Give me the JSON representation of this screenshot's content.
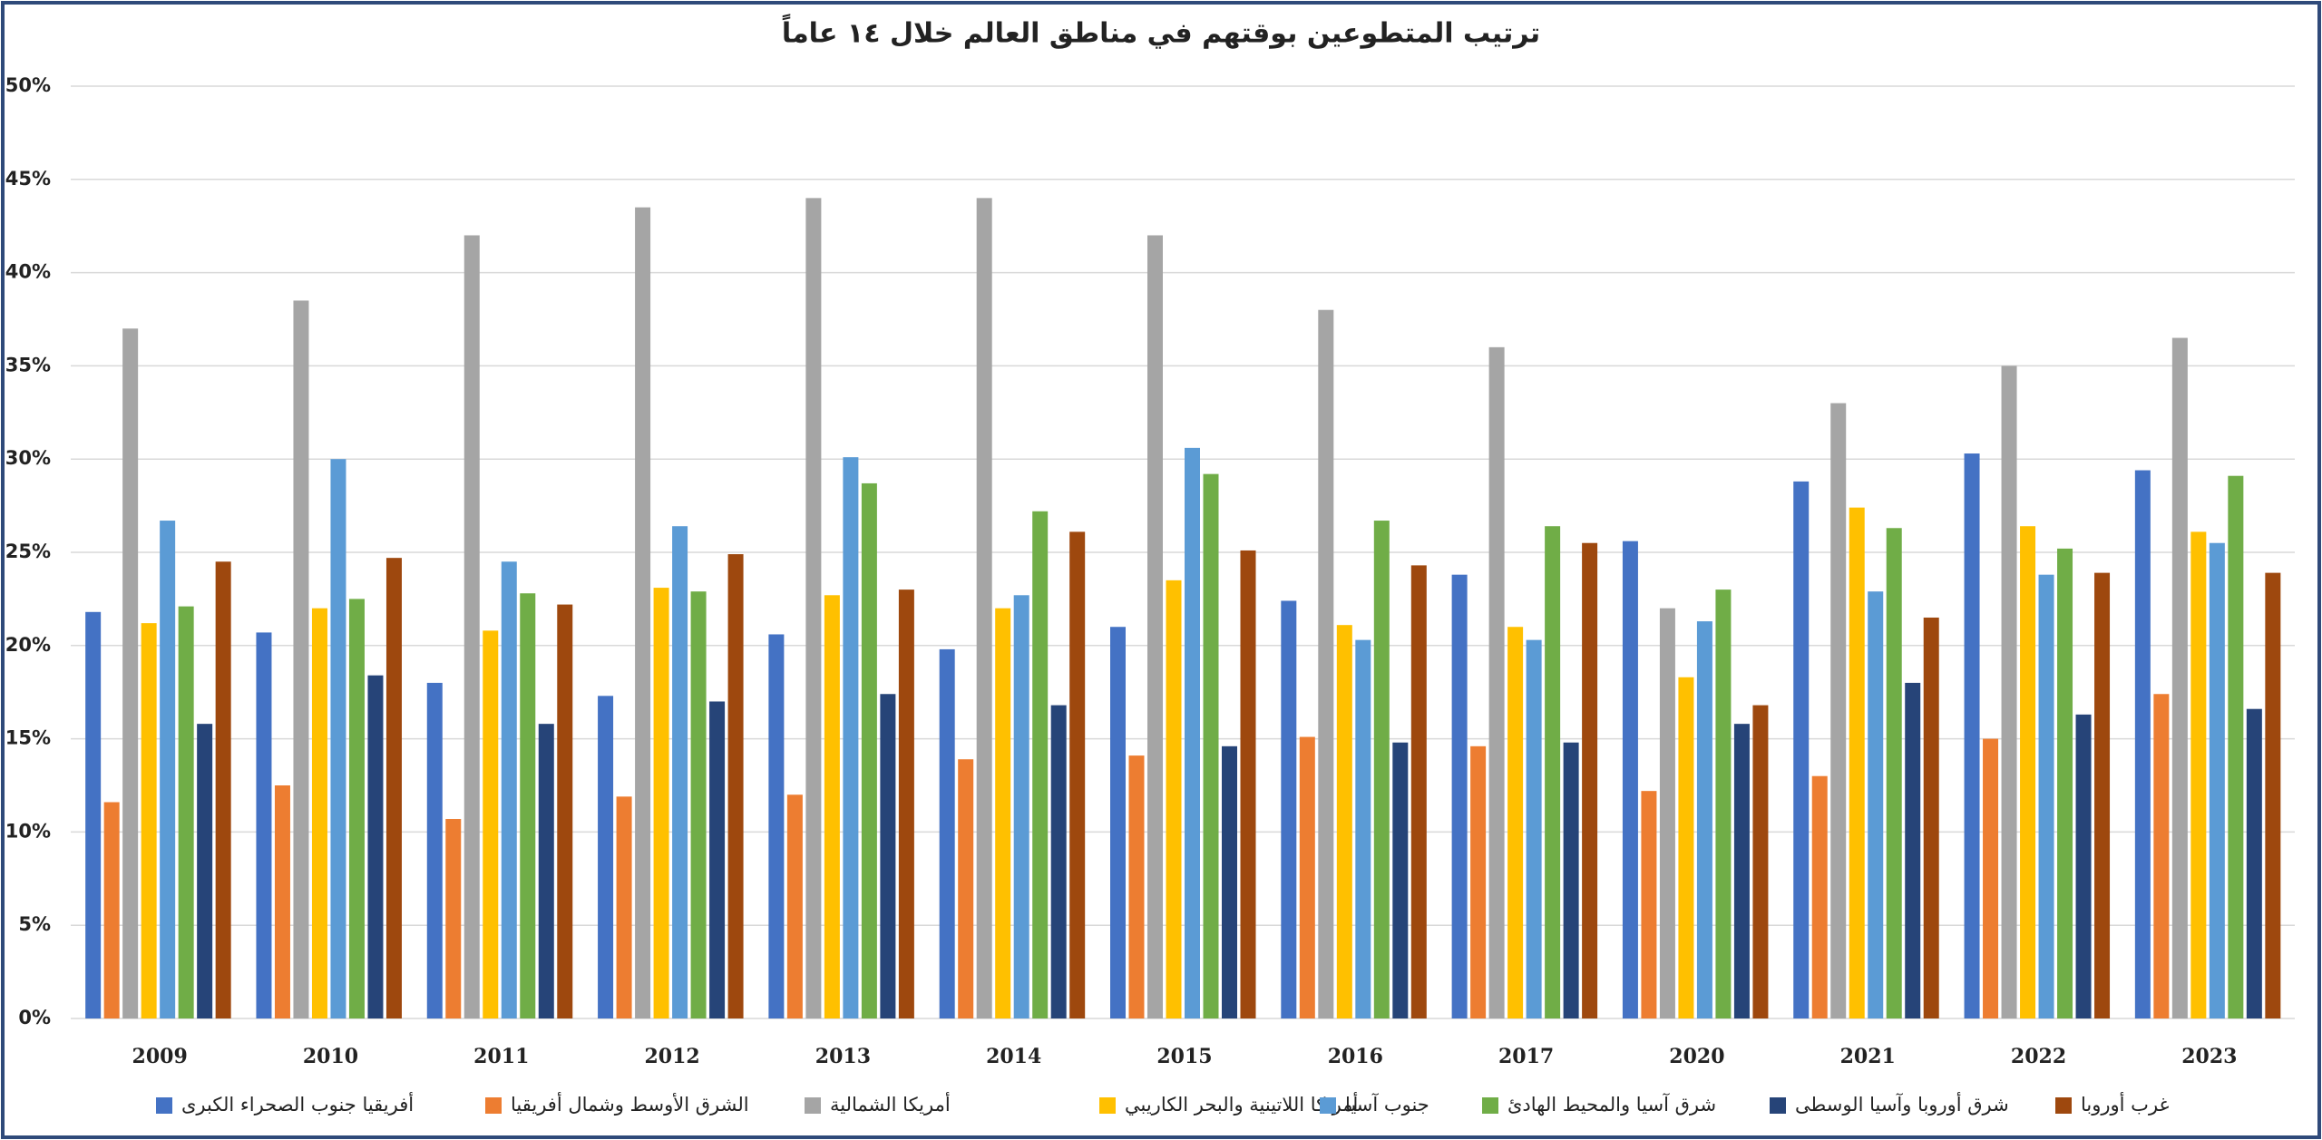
{
  "chart_data": {
    "type": "bar",
    "title": "ترتيب المتطوعين بوقتهم في مناطق العالم خلال ١٤ عاماً",
    "categories": [
      "2009",
      "2010",
      "2011",
      "2012",
      "2013",
      "2014",
      "2015",
      "2016",
      "2017",
      "2020",
      "2021",
      "2022",
      "2023"
    ],
    "series": [
      {
        "name": "أفريقيا جنوب الصحراء الكبرى",
        "color": "#4472c4",
        "values": [
          21.8,
          20.7,
          18,
          17.3,
          20.6,
          19.8,
          21,
          22.4,
          23.8,
          25.6,
          28.8,
          30.3,
          29.4
        ]
      },
      {
        "name": "الشرق الأوسط وشمال أفريقيا",
        "color": "#ed7d31",
        "values": [
          11.6,
          12.5,
          10.7,
          11.9,
          12,
          13.9,
          14.1,
          15.1,
          14.6,
          12.2,
          13,
          15,
          17.4
        ]
      },
      {
        "name": "أمريكا الشمالية",
        "color": "#a5a5a5",
        "values": [
          37,
          38.5,
          42,
          43.5,
          44,
          44,
          42,
          38,
          36,
          22,
          33,
          35,
          36.5
        ]
      },
      {
        "name": "أمريكا اللاتينية والبحر الكاريبي",
        "color": "#ffc000",
        "values": [
          21.2,
          22,
          20.8,
          23.1,
          22.7,
          22,
          23.5,
          21.1,
          21,
          18.3,
          27.4,
          26.4,
          26.1
        ]
      },
      {
        "name": "جنوب آسيا",
        "color": "#5b9bd5",
        "values": [
          26.7,
          30,
          24.5,
          26.4,
          30.1,
          22.7,
          30.6,
          20.3,
          20.3,
          21.3,
          22.9,
          23.8,
          25.5
        ]
      },
      {
        "name": "شرق آسيا والمحيط الهادئ",
        "color": "#70ad47",
        "values": [
          22.1,
          22.5,
          22.8,
          22.9,
          28.7,
          27.2,
          29.2,
          26.7,
          26.4,
          23,
          26.3,
          25.2,
          29.1
        ]
      },
      {
        "name": "شرق أوروبا وآسيا الوسطى",
        "color": "#264478",
        "values": [
          15.8,
          18.4,
          15.8,
          17,
          17.4,
          16.8,
          14.6,
          14.8,
          14.8,
          15.8,
          18,
          16.3,
          16.6
        ]
      },
      {
        "name": "غرب أوروبا",
        "color": "#9e480e",
        "values": [
          24.5,
          24.7,
          22.2,
          24.9,
          23,
          26.1,
          25.1,
          24.3,
          25.5,
          16.8,
          21.5,
          23.9,
          23.9
        ]
      }
    ],
    "ylim": [
      0,
      50
    ],
    "yticks": [
      {
        "value": 0,
        "label": "0%"
      },
      {
        "value": 5,
        "label": "5%"
      },
      {
        "value": 10,
        "label": "10%"
      },
      {
        "value": 15,
        "label": "15%"
      },
      {
        "value": 20,
        "label": "20%"
      },
      {
        "value": 25,
        "label": "25%"
      },
      {
        "value": 30,
        "label": "30%"
      },
      {
        "value": 35,
        "label": "35%"
      },
      {
        "value": 40,
        "label": "40%"
      },
      {
        "value": 45,
        "label": "45%"
      },
      {
        "value": 50,
        "label": "50%"
      }
    ],
    "grid": true
  }
}
